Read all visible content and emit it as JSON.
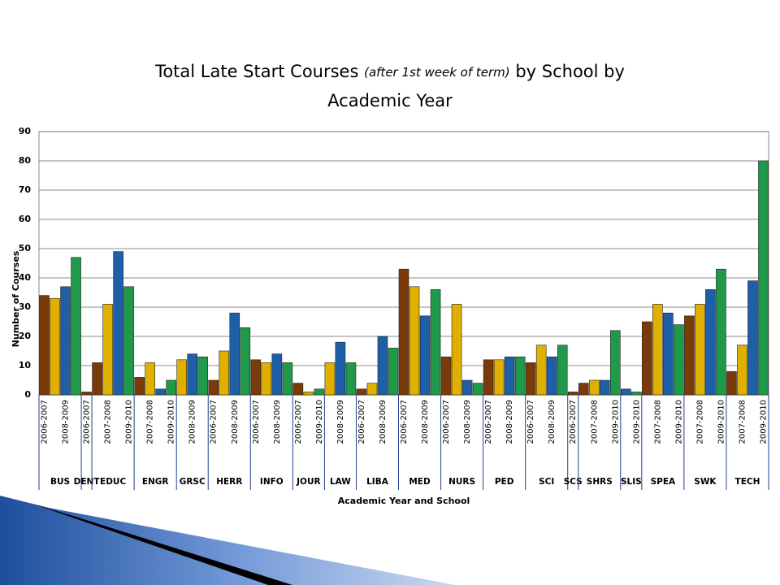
{
  "chart_data": {
    "type": "bar",
    "title": "Total  Late Start Courses",
    "title_note": "(after 1st week of term)",
    "title_end": "by School by",
    "title_line2": "Academic Year",
    "y_label": "Number of Courses",
    "x_label": "Academic Year and School",
    "categories": [
      "BUS",
      "DENT",
      "EDUC",
      "ENGR",
      "GRSC",
      "HERR",
      "INFO",
      "JOUR",
      "LAW",
      "LIBA",
      "MED",
      "NURS",
      "PED",
      "SCI",
      "SCS",
      "SHRS",
      "SLIS",
      "SPEA",
      "SWK",
      "TECH"
    ],
    "series": [
      {
        "name": "2006-2007",
        "color": "#7a3a0a",
        "values": [
          34,
          1,
          11,
          6,
          null,
          5,
          12,
          4,
          null,
          2,
          43,
          13,
          12,
          11,
          1,
          4,
          null,
          25,
          27,
          8
        ]
      },
      {
        "name": "2007-2008",
        "color": "#e0b000",
        "values": [
          33,
          null,
          31,
          11,
          12,
          15,
          11,
          1,
          11,
          4,
          37,
          31,
          12,
          17,
          null,
          5,
          null,
          31,
          31,
          17
        ]
      },
      {
        "name": "2008-2009",
        "color": "#1f5fa8",
        "values": [
          37,
          null,
          49,
          2,
          14,
          28,
          14,
          null,
          18,
          20,
          27,
          5,
          13,
          13,
          null,
          5,
          2,
          28,
          36,
          39
        ]
      },
      {
        "name": "2009-2010",
        "color": "#1e9a4a",
        "values": [
          47,
          null,
          37,
          5,
          13,
          23,
          11,
          2,
          11,
          16,
          36,
          4,
          13,
          17,
          null,
          22,
          1,
          24,
          43,
          80
        ]
      }
    ],
    "ylim": [
      0,
      90
    ],
    "yticks": [
      0,
      10,
      20,
      30,
      40,
      50,
      60,
      70,
      80,
      90
    ],
    "grid": true
  }
}
